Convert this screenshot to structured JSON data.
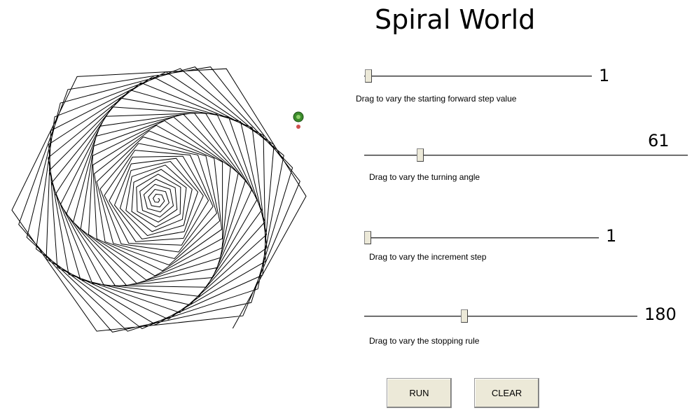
{
  "title": "Spiral World",
  "sliders": [
    {
      "value": 1,
      "caption": "Drag to vary the starting forward step value"
    },
    {
      "value": 61,
      "caption": "Drag to vary the turning angle"
    },
    {
      "value": 1,
      "caption": "Drag to vary the increment step"
    },
    {
      "value": 180,
      "caption": "Drag to vary the stopping rule"
    }
  ],
  "buttons": [
    "RUN",
    "CLEAR"
  ]
}
